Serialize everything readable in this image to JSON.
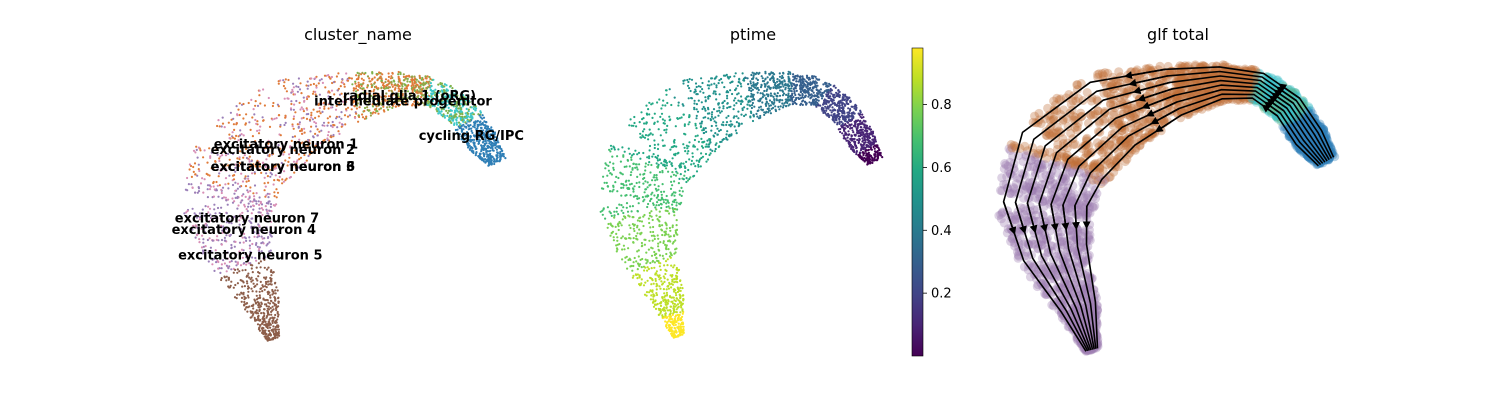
{
  "chart_data": [
    {
      "type": "scatter",
      "title": "cluster_name",
      "labels": [
        {
          "text": "radial glia 1 (oRG)",
          "x": 0.66,
          "y": 0.86
        },
        {
          "text": "intermediate progenitor",
          "x": 0.64,
          "y": 0.84
        },
        {
          "text": "cycling RG/IPC",
          "x": 0.85,
          "y": 0.72
        },
        {
          "text": "excitatory neuron 1",
          "x": 0.28,
          "y": 0.69
        },
        {
          "text": "excitatory neuron 2",
          "x": 0.27,
          "y": 0.67
        },
        {
          "text": "excitatory neuron 3",
          "x": 0.27,
          "y": 0.61
        },
        {
          "text": "excitatory neuron 6",
          "x": 0.27,
          "y": 0.61
        },
        {
          "text": "excitatory neuron 7",
          "x": 0.16,
          "y": 0.43
        },
        {
          "text": "excitatory neuron 4",
          "x": 0.15,
          "y": 0.39
        },
        {
          "text": "excitatory neuron 5",
          "x": 0.17,
          "y": 0.3
        }
      ],
      "colors": {
        "orange": "#e07b39",
        "green": "#7fb24a",
        "teal": "#3ec8c8",
        "blue": "#2f7fb6",
        "purple": "#9a7fb8",
        "brown": "#8d5e4a",
        "pink": "#d88fb6",
        "olive": "#9aa14a"
      }
    },
    {
      "type": "scatter",
      "title": "ptime",
      "colormap": "viridis",
      "colorbar": {
        "ticks": [
          "0.2",
          "0.4",
          "0.6",
          "0.8"
        ],
        "range": [
          0.0,
          0.98
        ]
      }
    },
    {
      "type": "scatter",
      "title": "glf total",
      "overlay": "streamlines",
      "colors": {
        "orange": "#c0713a",
        "purple": "#9d7fb3",
        "teal": "#3dbfc9",
        "blue": "#2f7fb6",
        "green": "#63b37f",
        "stream": "#000000"
      }
    }
  ]
}
